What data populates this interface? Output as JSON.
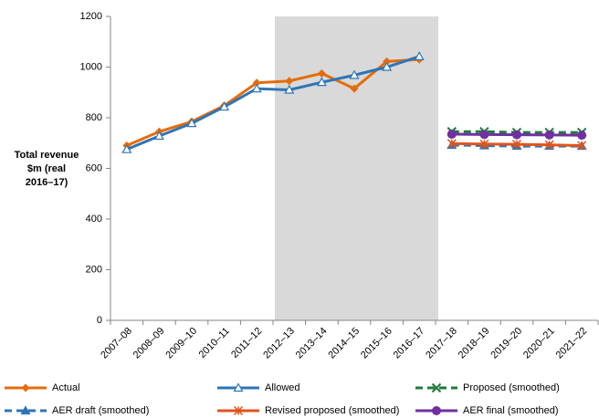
{
  "chart_data": {
    "type": "line",
    "y_label": "Total revenue $m (real 2016–17)",
    "categories": [
      "2007–08",
      "2008–09",
      "2009–10",
      "2010–11",
      "2011–12",
      "2012–13",
      "2013–14",
      "2014–15",
      "2015–16",
      "2016–17",
      "2017–18",
      "2018–19",
      "2019–20",
      "2020–21",
      "2021–22"
    ],
    "series": [
      {
        "name": "Actual",
        "color": "#e46c0a",
        "marker": "diamond",
        "dash": false,
        "values": [
          690,
          745,
          785,
          848,
          938,
          945,
          975,
          915,
          1022,
          1030,
          null,
          null,
          null,
          null,
          null
        ]
      },
      {
        "name": "Allowed",
        "color": "#2e75b6",
        "marker": "triangle-open",
        "dash": false,
        "values": [
          675,
          728,
          778,
          843,
          915,
          910,
          940,
          968,
          1000,
          1042,
          null,
          null,
          null,
          null,
          null
        ]
      },
      {
        "name": "Proposed (smoothed)",
        "color": "#1e7b3a",
        "marker": "x",
        "dash": true,
        "values": [
          null,
          null,
          null,
          null,
          null,
          null,
          null,
          null,
          null,
          null,
          745,
          745,
          742,
          742,
          742
        ]
      },
      {
        "name": "AER draft (smoothed)",
        "color": "#2e75b6",
        "marker": "triangle",
        "dash": true,
        "values": [
          null,
          null,
          null,
          null,
          null,
          null,
          null,
          null,
          null,
          null,
          692,
          690,
          688,
          688,
          688
        ]
      },
      {
        "name": "Revised proposed (smoothed)",
        "color": "#e0541b",
        "marker": "star",
        "dash": false,
        "values": [
          null,
          null,
          null,
          null,
          null,
          null,
          null,
          null,
          null,
          null,
          698,
          696,
          695,
          693,
          690
        ]
      },
      {
        "name": "AER final (smoothed)",
        "color": "#7030a0",
        "marker": "circle",
        "dash": false,
        "values": [
          null,
          null,
          null,
          null,
          null,
          null,
          null,
          null,
          null,
          null,
          735,
          734,
          733,
          732,
          731
        ]
      }
    ],
    "ylim": [
      0,
      1200
    ],
    "yticks": [
      0,
      200,
      400,
      600,
      800,
      1000,
      1200
    ],
    "grid": false
  }
}
